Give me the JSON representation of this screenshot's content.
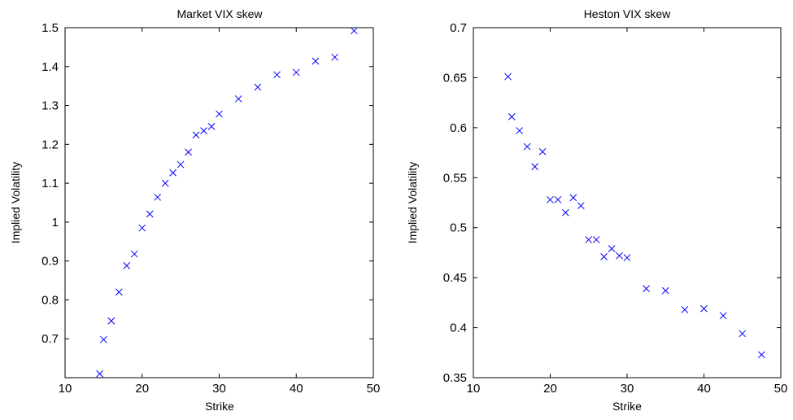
{
  "chart_data": [
    {
      "type": "scatter",
      "title": "Market VIX skew",
      "xlabel": "Strike",
      "ylabel": "Implied Volatility",
      "xlim": [
        10,
        50
      ],
      "ylim": [
        0.6,
        1.5
      ],
      "xticks": [
        10,
        20,
        30,
        40,
        50
      ],
      "xtick_labels": [
        "10",
        "20",
        "30",
        "40",
        "50"
      ],
      "yticks": [
        0.7,
        0.8,
        0.9,
        1.0,
        1.1,
        1.2,
        1.3,
        1.4,
        1.5
      ],
      "ytick_labels": [
        "0.7",
        "0.8",
        "0.9",
        "1",
        "1.1",
        "1.2",
        "1.3",
        "1.4",
        "1.5"
      ],
      "grid": false,
      "marker": "x",
      "marker_color": "#0000ff",
      "series": [
        {
          "x": [
            14.5,
            15,
            16,
            17,
            18,
            19,
            20,
            21,
            22,
            23,
            24,
            25,
            26,
            27,
            28,
            29,
            30,
            32.5,
            35,
            37.5,
            40,
            42.5,
            45,
            47.5
          ],
          "y": [
            0.61,
            0.698,
            0.746,
            0.82,
            0.888,
            0.918,
            0.985,
            1.021,
            1.064,
            1.1,
            1.127,
            1.148,
            1.18,
            1.224,
            1.235,
            1.246,
            1.278,
            1.317,
            1.347,
            1.379,
            1.385,
            1.414,
            1.424,
            1.492
          ]
        }
      ]
    },
    {
      "type": "scatter",
      "title": "Heston VIX skew",
      "xlabel": "Strike",
      "ylabel": "Implied Volatility",
      "xlim": [
        10,
        50
      ],
      "ylim": [
        0.35,
        0.7
      ],
      "xticks": [
        10,
        20,
        30,
        40,
        50
      ],
      "xtick_labels": [
        "10",
        "20",
        "30",
        "40",
        "50"
      ],
      "yticks": [
        0.35,
        0.4,
        0.45,
        0.5,
        0.55,
        0.6,
        0.65,
        0.7
      ],
      "ytick_labels": [
        "0.35",
        "0.4",
        "0.45",
        "0.5",
        "0.55",
        "0.6",
        "0.65",
        "0.7"
      ],
      "grid": false,
      "marker": "x",
      "marker_color": "#0000ff",
      "series": [
        {
          "x": [
            14.5,
            15,
            16,
            17,
            18,
            19,
            20,
            21,
            22,
            23,
            24,
            25,
            26,
            27,
            28,
            29,
            30,
            32.5,
            35,
            37.5,
            40,
            42.5,
            45,
            47.5
          ],
          "y": [
            0.651,
            0.611,
            0.597,
            0.581,
            0.561,
            0.576,
            0.528,
            0.528,
            0.515,
            0.53,
            0.522,
            0.488,
            0.488,
            0.471,
            0.479,
            0.472,
            0.47,
            0.439,
            0.437,
            0.418,
            0.419,
            0.412,
            0.394,
            0.373
          ]
        }
      ]
    }
  ]
}
